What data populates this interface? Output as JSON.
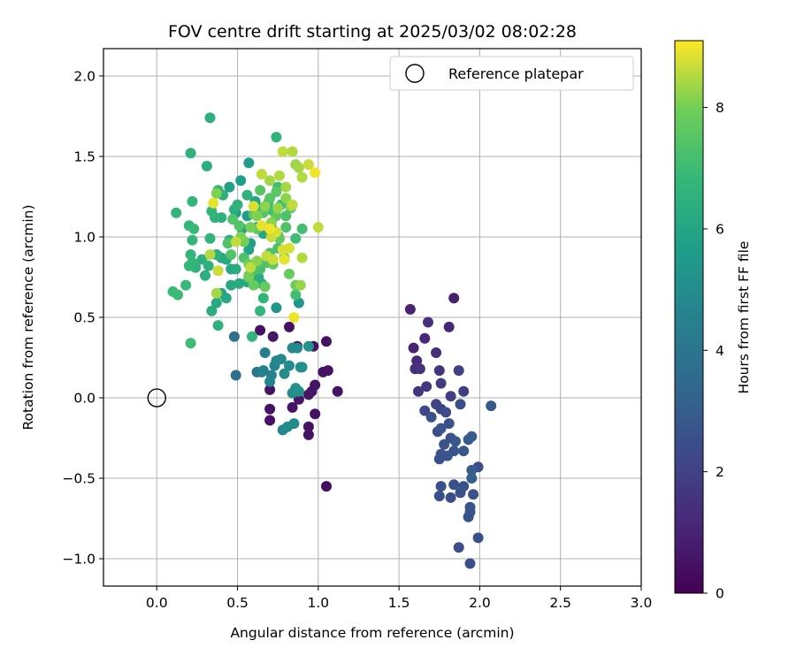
{
  "chart_data": {
    "type": "scatter",
    "title": "FOV centre drift starting at 2025/03/02 08:02:28",
    "xlabel": "Angular distance from reference (arcmin)",
    "ylabel": "Rotation from reference (arcmin)",
    "xlim": [
      -0.33,
      3.0
    ],
    "ylim": [
      -1.17,
      2.17
    ],
    "x_ticks": [
      0.0,
      0.5,
      1.0,
      1.5,
      2.0,
      2.5,
      3.0
    ],
    "x_tick_labels": [
      "0.0",
      "0.5",
      "1.0",
      "1.5",
      "2.0",
      "2.5",
      "3.0"
    ],
    "y_ticks": [
      -1.0,
      -0.5,
      0.0,
      0.5,
      1.0,
      1.5,
      2.0
    ],
    "y_tick_labels": [
      "−1.0",
      "−0.5",
      "0.0",
      "0.5",
      "1.0",
      "1.5",
      "2.0"
    ],
    "grid": true,
    "colormap": "viridis",
    "colorbar": {
      "label": "Hours from first FF file",
      "range": [
        0,
        9.1
      ],
      "ticks": [
        0,
        2,
        4,
        6,
        8
      ],
      "tick_labels": [
        "0",
        "2",
        "4",
        "6",
        "8"
      ]
    },
    "legend": {
      "placement": "top-right",
      "entries": [
        "Reference platepar"
      ]
    },
    "reference": {
      "label": "Reference platepar",
      "x": 0.0,
      "y": 0.0,
      "marker": "open-circle"
    },
    "points": [
      [
        0.87,
        0.32,
        0.5
      ],
      [
        1.05,
        0.35,
        0.5
      ],
      [
        0.97,
        0.32,
        0.5
      ],
      [
        0.82,
        0.44,
        0.5
      ],
      [
        0.64,
        0.42,
        0.5
      ],
      [
        0.72,
        0.38,
        0.6
      ],
      [
        1.06,
        0.17,
        0.5
      ],
      [
        1.03,
        0.16,
        0.5
      ],
      [
        1.12,
        0.04,
        0.5
      ],
      [
        0.98,
        0.08,
        0.5
      ],
      [
        0.96,
        0.04,
        0.5
      ],
      [
        0.94,
        0.02,
        0.6
      ],
      [
        0.98,
        -0.1,
        0.5
      ],
      [
        0.94,
        -0.18,
        0.5
      ],
      [
        0.94,
        -0.23,
        0.5
      ],
      [
        0.84,
        -0.06,
        0.5
      ],
      [
        0.7,
        -0.07,
        0.5
      ],
      [
        0.7,
        -0.14,
        0.5
      ],
      [
        0.7,
        0.05,
        0.5
      ],
      [
        0.88,
        -0.01,
        0.6
      ],
      [
        1.05,
        -0.55,
        0.4
      ],
      [
        1.84,
        0.62,
        0.9
      ],
      [
        1.57,
        0.55,
        1.0
      ],
      [
        1.81,
        0.44,
        1.1
      ],
      [
        1.59,
        0.31,
        1.0
      ],
      [
        1.66,
        0.37,
        1.1
      ],
      [
        1.61,
        0.23,
        1.2
      ],
      [
        1.73,
        0.28,
        1.3
      ],
      [
        1.6,
        0.18,
        1.4
      ],
      [
        1.75,
        0.17,
        1.5
      ],
      [
        1.63,
        0.18,
        1.5
      ],
      [
        1.68,
        0.47,
        1.4
      ],
      [
        1.62,
        0.04,
        1.6
      ],
      [
        1.67,
        0.07,
        1.7
      ],
      [
        1.76,
        0.09,
        1.8
      ],
      [
        1.82,
        0.01,
        1.9
      ],
      [
        1.87,
        0.17,
        2.0
      ],
      [
        1.9,
        0.04,
        2.0
      ],
      [
        1.73,
        -0.04,
        2.1
      ],
      [
        1.76,
        -0.07,
        2.1
      ],
      [
        1.66,
        -0.08,
        2.2
      ],
      [
        1.79,
        -0.09,
        2.3
      ],
      [
        1.74,
        -0.21,
        2.4
      ],
      [
        1.81,
        -0.16,
        2.5
      ],
      [
        1.7,
        -0.12,
        2.6
      ],
      [
        1.76,
        -0.19,
        2.7
      ],
      [
        1.85,
        -0.27,
        2.8
      ],
      [
        1.93,
        -0.26,
        2.9
      ],
      [
        1.95,
        -0.24,
        3.0
      ],
      [
        1.82,
        -0.25,
        2.6
      ],
      [
        1.78,
        -0.29,
        2.6
      ],
      [
        1.84,
        -0.33,
        2.7
      ],
      [
        1.76,
        -0.35,
        2.6
      ],
      [
        1.8,
        -0.36,
        2.7
      ],
      [
        1.9,
        -0.33,
        2.8
      ],
      [
        1.95,
        -0.45,
        3.0
      ],
      [
        1.95,
        -0.5,
        3.1
      ],
      [
        1.75,
        -0.38,
        2.5
      ],
      [
        1.76,
        -0.55,
        2.5
      ],
      [
        1.84,
        -0.54,
        2.6
      ],
      [
        1.75,
        -0.61,
        2.5
      ],
      [
        1.82,
        -0.62,
        2.5
      ],
      [
        1.88,
        -0.59,
        2.6
      ],
      [
        1.9,
        -0.55,
        2.6
      ],
      [
        1.96,
        -0.6,
        2.6
      ],
      [
        1.99,
        -0.43,
        2.4
      ],
      [
        1.93,
        -0.74,
        2.6
      ],
      [
        1.94,
        -0.71,
        2.6
      ],
      [
        1.94,
        -0.68,
        2.6
      ],
      [
        1.99,
        -0.87,
        2.5
      ],
      [
        1.87,
        -0.93,
        2.5
      ],
      [
        1.94,
        -1.03,
        2.5
      ],
      [
        2.07,
        -0.05,
        2.9
      ],
      [
        1.88,
        -0.04,
        2.5
      ],
      [
        0.48,
        0.38,
        3.8
      ],
      [
        0.49,
        0.14,
        3.7
      ],
      [
        0.62,
        0.16,
        4.0
      ],
      [
        0.65,
        0.16,
        4.2
      ],
      [
        0.67,
        0.28,
        4.4
      ],
      [
        0.71,
        0.14,
        4.5
      ],
      [
        0.73,
        0.2,
        4.6
      ],
      [
        0.74,
        0.23,
        4.7
      ],
      [
        0.77,
        0.24,
        4.8
      ],
      [
        0.79,
        0.15,
        4.9
      ],
      [
        0.82,
        0.2,
        4.9
      ],
      [
        0.84,
        0.31,
        4.8
      ],
      [
        0.87,
        0.31,
        4.9
      ],
      [
        0.89,
        0.19,
        5.0
      ],
      [
        0.9,
        0.19,
        5.1
      ],
      [
        0.94,
        0.32,
        5.2
      ],
      [
        0.84,
        0.03,
        5.0
      ],
      [
        0.86,
        0.06,
        5.1
      ],
      [
        0.88,
        0.04,
        5.2
      ],
      [
        0.81,
        -0.18,
        5.0
      ],
      [
        0.85,
        -0.16,
        4.9
      ],
      [
        0.78,
        -0.2,
        4.8
      ],
      [
        0.7,
        0.1,
        4.6
      ],
      [
        0.66,
        0.17,
        4.5
      ],
      [
        0.74,
        0.56,
        5.3
      ],
      [
        0.88,
        0.59,
        5.4
      ],
      [
        0.57,
        1.46,
        5.6
      ],
      [
        0.52,
        1.35,
        5.7
      ],
      [
        0.45,
        1.31,
        5.8
      ],
      [
        0.49,
        1.15,
        5.6
      ],
      [
        0.56,
        1.13,
        5.7
      ],
      [
        0.61,
        1.22,
        5.9
      ],
      [
        0.63,
        1.18,
        6.0
      ],
      [
        0.58,
        0.96,
        5.8
      ],
      [
        0.53,
        1.05,
        5.9
      ],
      [
        0.62,
        1.06,
        6.0
      ],
      [
        0.66,
        1.02,
        6.1
      ],
      [
        0.71,
        1.06,
        6.2
      ],
      [
        0.75,
        1.01,
        6.3
      ],
      [
        0.57,
        0.92,
        5.9
      ],
      [
        0.37,
        0.89,
        6.0
      ],
      [
        0.4,
        0.87,
        6.1
      ],
      [
        0.43,
        0.86,
        6.2
      ],
      [
        0.46,
        0.8,
        6.0
      ],
      [
        0.49,
        0.8,
        6.3
      ],
      [
        0.51,
        0.71,
        6.2
      ],
      [
        0.56,
        0.72,
        6.1
      ],
      [
        0.6,
        0.75,
        6.2
      ],
      [
        0.63,
        0.75,
        6.3
      ],
      [
        0.65,
        0.71,
        6.3
      ],
      [
        0.4,
        0.65,
        6.0
      ],
      [
        0.43,
        0.62,
        6.1
      ],
      [
        0.46,
        0.7,
        6.2
      ],
      [
        0.37,
        0.59,
        6.2
      ],
      [
        0.34,
        0.54,
        6.3
      ],
      [
        0.3,
        0.76,
        6.4
      ],
      [
        0.32,
        0.82,
        6.5
      ],
      [
        0.28,
        0.86,
        6.5
      ],
      [
        0.24,
        0.81,
        6.6
      ],
      [
        0.21,
        0.89,
        6.7
      ],
      [
        0.22,
        0.84,
        6.8
      ],
      [
        0.2,
        0.82,
        6.8
      ],
      [
        0.18,
        0.7,
        6.9
      ],
      [
        0.13,
        0.64,
        7.0
      ],
      [
        0.1,
        0.66,
        6.9
      ],
      [
        0.2,
        1.07,
        6.8
      ],
      [
        0.23,
        1.05,
        6.9
      ],
      [
        0.22,
        0.98,
        6.8
      ],
      [
        0.21,
        1.52,
        6.6
      ],
      [
        0.22,
        1.22,
        6.7
      ],
      [
        0.31,
        1.44,
        6.4
      ],
      [
        0.33,
        1.74,
        6.5
      ],
      [
        0.36,
        1.12,
        6.6
      ],
      [
        0.4,
        1.12,
        6.5
      ],
      [
        0.41,
        1.26,
        6.5
      ],
      [
        0.33,
        0.99,
        6.6
      ],
      [
        0.37,
        0.89,
        6.5
      ],
      [
        0.45,
        0.98,
        6.4
      ],
      [
        0.38,
        0.45,
        6.5
      ],
      [
        0.59,
        0.38,
        6.7
      ],
      [
        0.66,
        0.62,
        6.7
      ],
      [
        0.64,
        0.54,
        6.8
      ],
      [
        0.74,
        1.62,
        6.6
      ],
      [
        0.86,
        0.64,
        7.1
      ],
      [
        0.12,
        1.15,
        6.7
      ],
      [
        0.21,
        0.34,
        7.0
      ],
      [
        0.38,
        1.29,
        6.8
      ],
      [
        0.34,
        1.16,
        6.7
      ],
      [
        0.5,
        1.2,
        6.6
      ],
      [
        0.56,
        1.26,
        6.5
      ],
      [
        0.48,
        1.17,
        6.4
      ],
      [
        0.69,
        1.21,
        6.9
      ],
      [
        0.77,
        1.2,
        7.0
      ],
      [
        0.72,
        1.16,
        7.1
      ],
      [
        0.75,
        1.31,
        7.0
      ],
      [
        0.83,
        1.18,
        7.2
      ],
      [
        0.9,
        1.05,
        7.1
      ],
      [
        0.86,
        0.99,
        7.0
      ],
      [
        0.8,
        1.13,
        7.3
      ],
      [
        0.8,
        1.06,
        7.3
      ],
      [
        0.75,
        0.93,
        7.2
      ],
      [
        0.7,
        0.9,
        7.3
      ],
      [
        0.68,
        0.84,
        7.4
      ],
      [
        0.64,
        0.8,
        7.2
      ],
      [
        0.6,
        0.79,
        7.3
      ],
      [
        0.57,
        0.76,
        7.4
      ],
      [
        0.54,
        0.87,
        7.3
      ],
      [
        0.46,
        0.89,
        7.4
      ],
      [
        0.44,
        0.96,
        7.3
      ],
      [
        0.47,
        1.11,
        7.4
      ],
      [
        0.51,
        1.07,
        7.4
      ],
      [
        0.66,
        1.15,
        7.5
      ],
      [
        0.7,
        1.24,
        7.5
      ],
      [
        0.74,
        1.28,
        7.6
      ],
      [
        0.64,
        1.29,
        7.5
      ],
      [
        0.6,
        1.14,
        7.6
      ],
      [
        0.62,
        1.05,
        7.6
      ],
      [
        0.74,
        1.13,
        7.7
      ],
      [
        0.76,
        0.99,
        7.7
      ],
      [
        0.79,
        0.87,
        7.7
      ],
      [
        0.82,
        0.77,
        7.8
      ],
      [
        0.86,
        0.7,
        7.9
      ],
      [
        0.72,
        0.83,
        7.8
      ],
      [
        0.67,
        0.69,
        7.8
      ],
      [
        0.6,
        0.7,
        7.8
      ],
      [
        0.57,
        0.83,
        7.9
      ],
      [
        0.54,
        0.97,
        8.0
      ],
      [
        0.52,
        1.0,
        8.1
      ],
      [
        0.58,
        1.06,
        8.0
      ],
      [
        0.62,
        1.13,
        8.1
      ],
      [
        0.67,
        1.19,
        8.2
      ],
      [
        0.71,
        1.09,
        8.2
      ],
      [
        0.75,
        1.18,
        8.3
      ],
      [
        0.8,
        1.24,
        8.2
      ],
      [
        0.83,
        1.19,
        8.2
      ],
      [
        0.86,
        1.45,
        8.3
      ],
      [
        0.88,
        1.43,
        8.4
      ],
      [
        0.9,
        1.37,
        8.5
      ],
      [
        0.84,
        1.53,
        8.5
      ],
      [
        0.78,
        1.53,
        8.6
      ],
      [
        0.7,
        1.35,
        8.4
      ],
      [
        0.65,
        1.39,
        8.6
      ],
      [
        0.76,
        1.38,
        8.5
      ],
      [
        0.8,
        1.31,
        8.4
      ],
      [
        0.84,
        1.2,
        8.6
      ],
      [
        0.71,
        1.0,
        8.7
      ],
      [
        0.68,
        0.88,
        8.6
      ],
      [
        0.72,
        0.86,
        8.7
      ],
      [
        0.78,
        0.92,
        8.8
      ],
      [
        0.79,
        0.86,
        8.9
      ],
      [
        0.82,
        0.93,
        8.8
      ],
      [
        0.9,
        0.87,
        8.5
      ],
      [
        1.0,
        1.06,
        8.6
      ],
      [
        0.94,
        1.45,
        8.7
      ],
      [
        0.98,
        1.4,
        9.0
      ],
      [
        0.65,
        1.07,
        8.9
      ],
      [
        0.7,
        1.05,
        9.0
      ],
      [
        0.74,
        1.03,
        8.8
      ],
      [
        0.6,
        1.19,
        8.8
      ],
      [
        0.35,
        1.21,
        8.9
      ],
      [
        0.49,
        0.97,
        8.6
      ],
      [
        0.33,
        0.89,
        8.5
      ],
      [
        0.37,
        0.65,
        8.4
      ],
      [
        0.38,
        0.79,
        8.7
      ],
      [
        0.58,
        0.81,
        8.6
      ],
      [
        0.62,
        0.85,
        8.2
      ],
      [
        0.85,
        0.5,
        9.0
      ],
      [
        0.89,
        0.7,
        8.3
      ],
      [
        0.57,
        0.75,
        8.0
      ],
      [
        0.37,
        1.27,
        8.1
      ]
    ]
  }
}
